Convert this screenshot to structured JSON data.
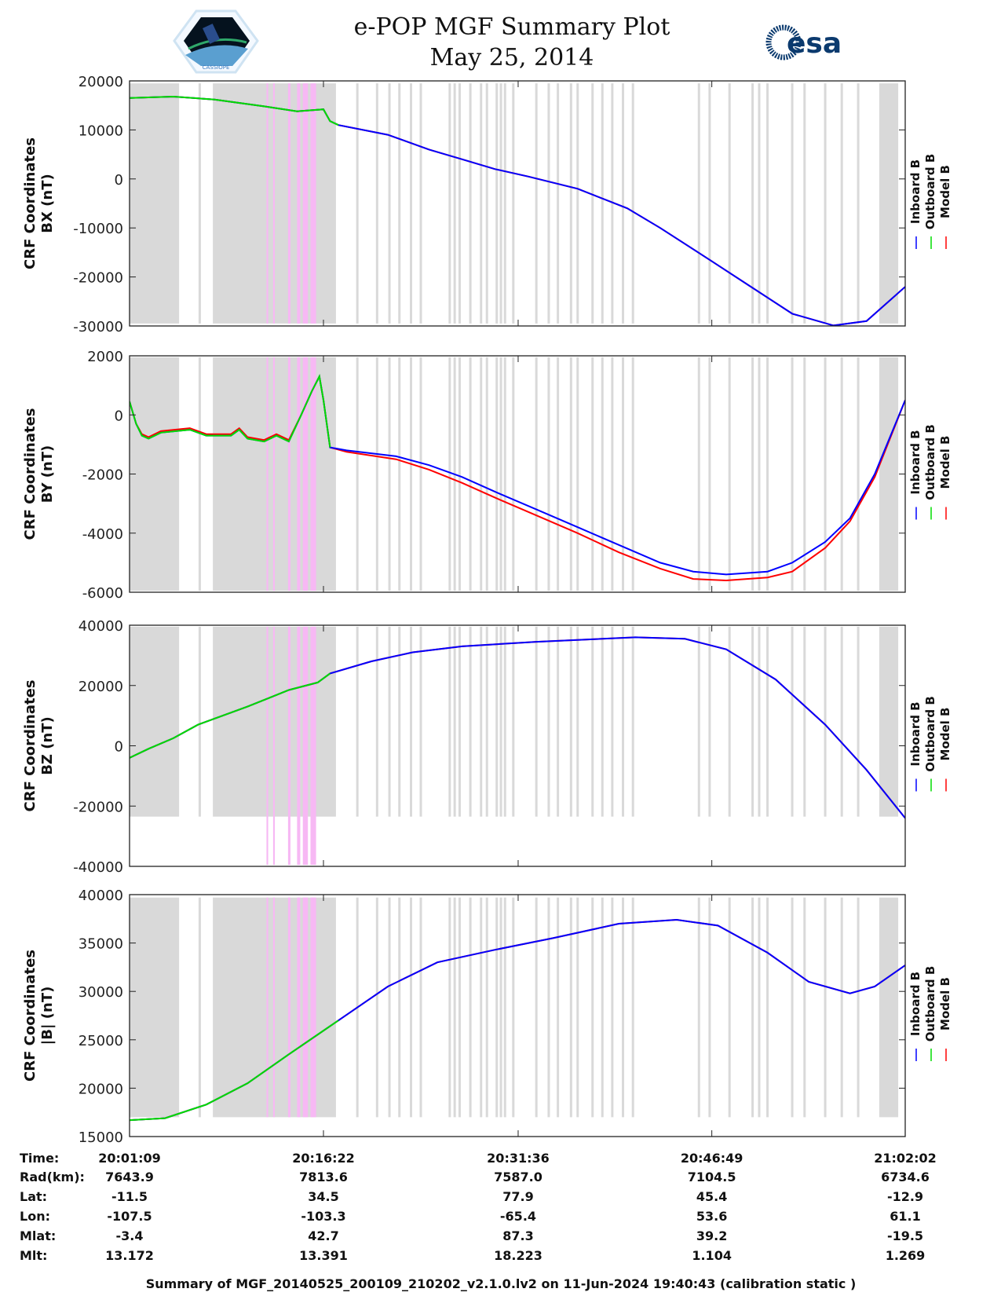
{
  "header": {
    "title": "e-POP MGF Summary Plot",
    "date": "May 25, 2014",
    "logo_left_text": "CASSIOPE",
    "logo_right_text": "esa"
  },
  "colors": {
    "inboard": "#0000ff",
    "outboard": "#00dd00",
    "model": "#ff0000",
    "shade_gray": "#d9d9d9",
    "shade_pink": "#f7b8f4"
  },
  "legend": [
    "Inboard B",
    "Outboard B",
    "Model B"
  ],
  "chart_data": {
    "type": "line",
    "x_unit": "minutes since 20:01:09",
    "xlim": [
      0,
      60.88
    ],
    "x_ticks": [
      0,
      15.22,
      30.5,
      45.7,
      60.88
    ],
    "shading": {
      "gray_blocks": [
        [
          0,
          3.89
        ],
        [
          6.54,
          16.2
        ],
        [
          58.84,
          60.33
        ]
      ],
      "gray_lines": [
        5.51,
        17.88,
        19.43,
        20.4,
        21.18,
        22.09,
        22.86,
        25.13,
        25.52,
        25.91,
        26.75,
        27.59,
        28.05,
        28.82,
        29.15,
        29.47,
        30.12,
        31.93,
        32.9,
        33.62,
        34.65,
        35.17,
        36.34,
        37.11,
        37.89,
        38.73,
        39.51,
        44.69,
        45.53,
        47.09,
        48.9,
        49.42,
        50.07,
        52.01,
        52.98,
        54.6,
        55.9,
        57.19
      ],
      "pink_blocks": [
        [
          10.75,
          10.88
        ],
        [
          11.27,
          11.4
        ],
        [
          12.44,
          12.63
        ],
        [
          13.15,
          13.4
        ],
        [
          13.6,
          14.0
        ],
        [
          14.2,
          14.64
        ]
      ]
    },
    "panels": [
      {
        "ylabel1": "CRF Coordinates",
        "ylabel2": "BX (nT)",
        "ylim": [
          -30000,
          20000
        ],
        "yticks": [
          20000,
          10000,
          0,
          -10000,
          -20000,
          -30000
        ],
        "shade_range": [
          -29500,
          19500
        ],
        "pink_range": [
          -29500,
          19500
        ],
        "x": [
          0,
          3.43,
          6.67,
          10.56,
          13.15,
          14.77,
          15.22,
          15.74,
          16.39,
          20.27,
          23.51,
          26.1,
          28.69,
          31.28,
          35.17,
          39.06,
          41.65,
          45.53,
          48.77,
          52.01,
          55.25,
          57.84,
          60.88
        ],
        "inboard": [
          16500,
          16800,
          16200,
          14800,
          13800,
          14100,
          14200,
          11800,
          11000,
          9000,
          6000,
          4000,
          2000,
          500,
          -2000,
          -6000,
          -10000,
          -16500,
          -22000,
          -27500,
          -29900,
          -29000,
          -22000
        ],
        "model": [
          16500,
          16800,
          16200,
          14800,
          13800,
          14100,
          14200,
          11800,
          11000,
          9000,
          6000,
          4000,
          2000,
          500,
          -2000,
          -6000,
          -10000,
          -16500,
          -22000,
          -27500,
          -29900,
          -29000,
          -22000
        ],
        "outboard_until": 16.39
      },
      {
        "ylabel1": "CRF Coordinates",
        "ylabel2": "BY (nT)",
        "ylim": [
          -6000,
          2000
        ],
        "yticks": [
          2000,
          0,
          -2000,
          -4000,
          -6000
        ],
        "shade_range": [
          -5950,
          1950
        ],
        "pink_range": [
          -5950,
          1950
        ],
        "x": [
          0,
          0.52,
          0.97,
          1.49,
          2.46,
          4.73,
          6.02,
          7.97,
          8.61,
          9.26,
          10.56,
          11.53,
          12.5,
          13.47,
          14.31,
          14.9,
          15.22,
          15.74,
          17.03,
          20.92,
          23.51,
          26.1,
          28.69,
          31.93,
          35.17,
          38.41,
          41.65,
          44.24,
          46.83,
          50.07,
          52.01,
          54.6,
          56.54,
          58.49,
          60.88
        ],
        "inboard": [
          450,
          -300,
          -700,
          -800,
          -600,
          -500,
          -700,
          -700,
          -500,
          -800,
          -900,
          -700,
          -900,
          0,
          800,
          1300,
          500,
          -1100,
          -1200,
          -1400,
          -1700,
          -2100,
          -2600,
          -3200,
          -3800,
          -4400,
          -5000,
          -5300,
          -5400,
          -5300,
          -5000,
          -4300,
          -3500,
          -2000,
          500
        ],
        "model": [
          450,
          -300,
          -650,
          -750,
          -550,
          -450,
          -650,
          -650,
          -450,
          -750,
          -850,
          -650,
          -850,
          0,
          800,
          1300,
          500,
          -1100,
          -1250,
          -1500,
          -1850,
          -2300,
          -2800,
          -3400,
          -4000,
          -4650,
          -5200,
          -5550,
          -5600,
          -5500,
          -5300,
          -4500,
          -3600,
          -2100,
          500
        ],
        "outboard_until": 17.0
      },
      {
        "ylabel1": "CRF Coordinates",
        "ylabel2": "BZ (nT)",
        "ylim": [
          -40000,
          40000
        ],
        "yticks": [
          40000,
          20000,
          0,
          -20000,
          -40000
        ],
        "shade_range": [
          -23500,
          39500
        ],
        "pink_range": [
          -39500,
          39500
        ],
        "x": [
          0,
          1.49,
          3.43,
          5.38,
          9.26,
          12.5,
          14.77,
          15.74,
          18.98,
          22.22,
          26.1,
          31.93,
          39.7,
          43.59,
          46.83,
          50.71,
          54.6,
          57.84,
          60.88
        ],
        "inboard": [
          -4000,
          -1000,
          2500,
          7000,
          13000,
          18500,
          21000,
          24000,
          28000,
          31000,
          33000,
          34500,
          36000,
          35500,
          32000,
          22000,
          7000,
          -8000,
          -24000
        ],
        "model": [
          -4000,
          -1000,
          2500,
          7000,
          13000,
          18500,
          21000,
          24000,
          28000,
          31000,
          33000,
          34500,
          36000,
          35500,
          32000,
          22000,
          7000,
          -8000,
          -24000
        ],
        "outboard_until": 16.2
      },
      {
        "ylabel1": "CRF Coordinates",
        "ylabel2": "|B| (nT)",
        "ylim": [
          15000,
          40000
        ],
        "yticks": [
          40000,
          35000,
          30000,
          25000,
          20000,
          15000
        ],
        "shade_range": [
          17000,
          39700
        ],
        "pink_range": [
          17000,
          39700
        ],
        "x": [
          0,
          2.79,
          6.02,
          9.26,
          12.5,
          16.39,
          20.27,
          24.16,
          28.69,
          33.23,
          38.41,
          42.94,
          46.18,
          50.07,
          53.31,
          56.54,
          58.49,
          60.88
        ],
        "inboard": [
          16700,
          16900,
          18300,
          20500,
          23500,
          27000,
          30500,
          33000,
          34300,
          35500,
          37000,
          37400,
          36800,
          34000,
          31000,
          29800,
          30500,
          32700
        ],
        "model": [
          16700,
          16900,
          18300,
          20500,
          23500,
          27000,
          30500,
          33000,
          34300,
          35500,
          37000,
          37400,
          36800,
          34000,
          31000,
          29800,
          30500,
          32700
        ],
        "outboard_until": 16.39
      }
    ]
  },
  "table": {
    "labels": [
      "Time:",
      "Rad(km):",
      "Lat:",
      "Lon:",
      "Mlat:",
      "Mlt:"
    ],
    "columns": [
      [
        "20:01:09",
        "7643.9",
        "-11.5",
        "-107.5",
        "-3.4",
        "13.172"
      ],
      [
        "20:16:22",
        "7813.6",
        "34.5",
        "-103.3",
        "42.7",
        "13.391"
      ],
      [
        "20:31:36",
        "7587.0",
        "77.9",
        "-65.4",
        "87.3",
        "18.223"
      ],
      [
        "20:46:49",
        "7104.5",
        "45.4",
        "53.6",
        "39.2",
        "1.104"
      ],
      [
        "21:02:02",
        "6734.6",
        "-12.9",
        "61.1",
        "-19.5",
        "1.269"
      ]
    ]
  },
  "footer": "Summary of MGF_20140525_200109_210202_v2.1.0.lv2 on 11-Jun-2024 19:40:43 (calibration static )"
}
